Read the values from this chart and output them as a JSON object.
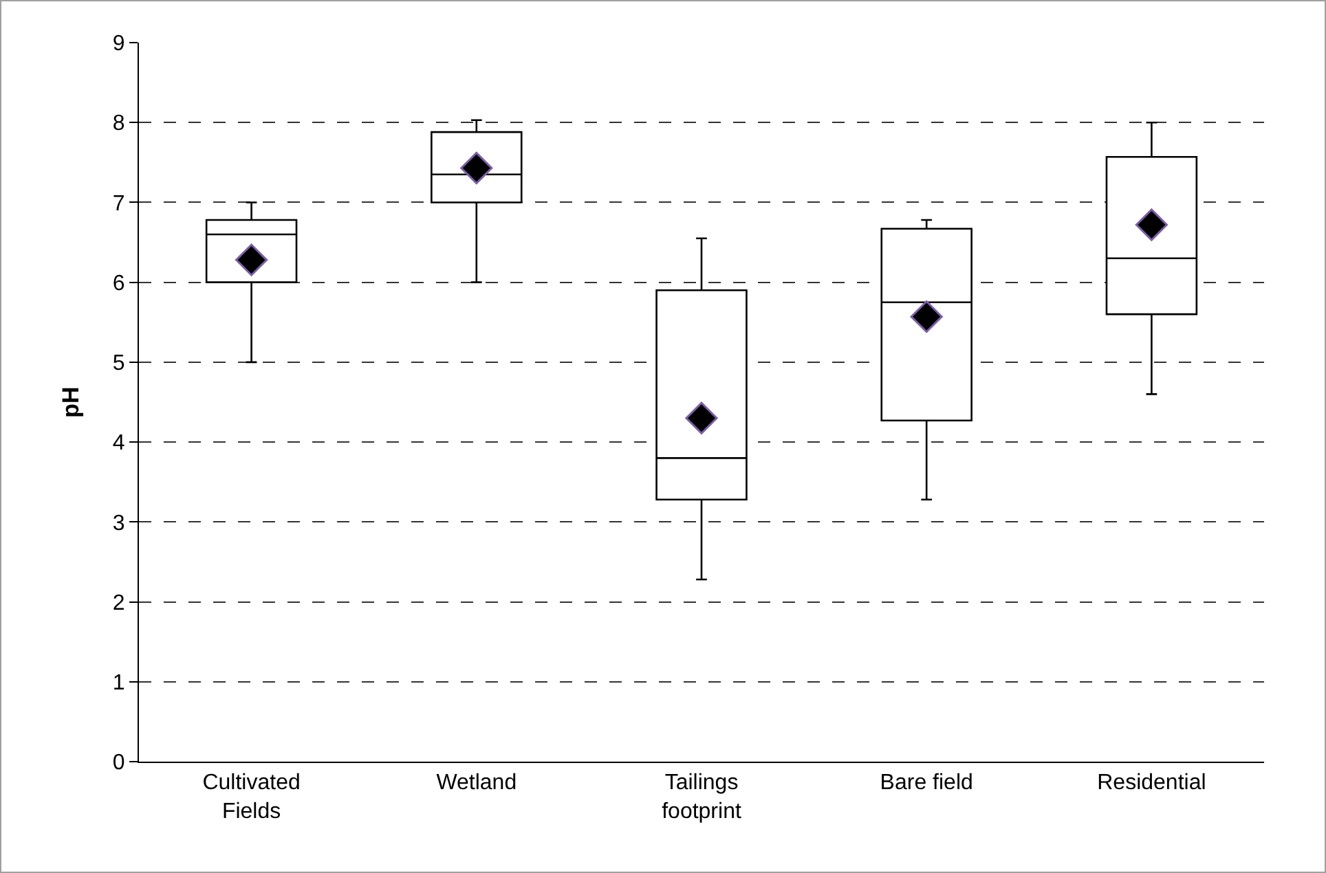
{
  "chart_data": {
    "type": "box",
    "ylabel": "pH",
    "categories": [
      "Cultivated Fields",
      "Wetland",
      "Tailings footprint",
      "Bare field",
      "Residential"
    ],
    "boxes": [
      {
        "low": 5.0,
        "q1": 6.0,
        "median": 6.6,
        "q3": 6.78,
        "high": 7.0,
        "mean": 6.28
      },
      {
        "low": 6.0,
        "q1": 7.0,
        "median": 7.35,
        "q3": 7.88,
        "high": 8.03,
        "mean": 7.43
      },
      {
        "low": 2.28,
        "q1": 3.28,
        "median": 3.8,
        "q3": 5.9,
        "high": 6.55,
        "mean": 4.3
      },
      {
        "low": 3.28,
        "q1": 4.27,
        "median": 5.75,
        "q3": 6.67,
        "high": 6.78,
        "mean": 5.57
      },
      {
        "low": 4.6,
        "q1": 5.6,
        "median": 6.3,
        "q3": 7.57,
        "high": 8.0,
        "mean": 6.72
      }
    ],
    "ylim": [
      0,
      9
    ],
    "yticks": [
      0,
      1,
      2,
      3,
      4,
      5,
      6,
      7,
      8,
      9
    ],
    "grid": "y",
    "marker": "diamond"
  }
}
